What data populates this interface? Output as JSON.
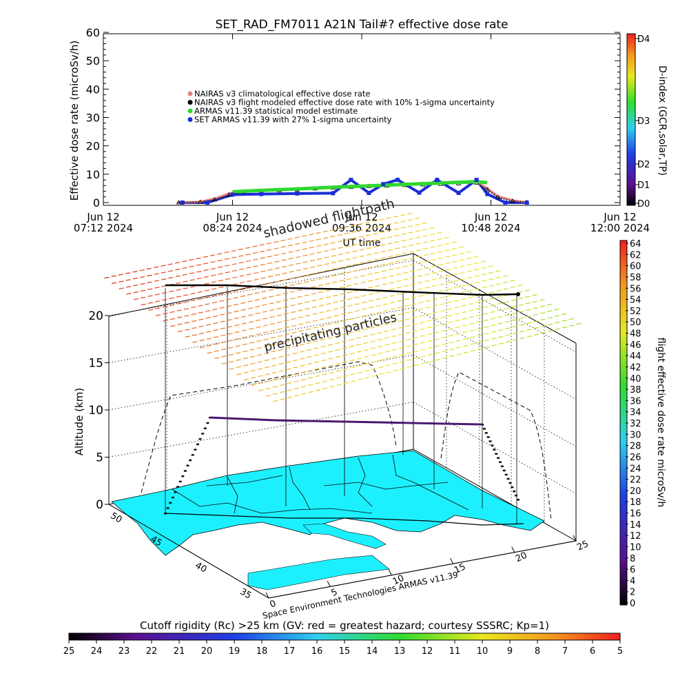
{
  "chart_data": [
    {
      "type": "line",
      "title": "SET_RAD_FM7011  A21N Tail#? effective dose rate",
      "ylabel": "Effective dose rate (microSv/h)",
      "xlabel": "UT time",
      "ylim": [
        0,
        60
      ],
      "yticks": [
        0,
        10,
        20,
        30,
        40,
        50,
        60
      ],
      "xlim": [
        "2024-06-12 07:12",
        "2024-06-12 12:00"
      ],
      "xticks": [
        {
          "t": "07:12",
          "date": "Jun 12",
          "label": "07:12 2024"
        },
        {
          "t": "08:24",
          "date": "Jun 12",
          "label": "08:24 2024"
        },
        {
          "t": "09:36",
          "date": "Jun 12",
          "label": "09:36 2024"
        },
        {
          "t": "10:48",
          "date": "Jun 12",
          "label": "10:48 2024"
        },
        {
          "t": "12:00",
          "date": "Jun 12",
          "label": "12:00 2024"
        }
      ],
      "legend": {
        "placement": "upper-left",
        "entries": [
          {
            "label": "NAIRAS v3 climatological effective dose rate",
            "color": "#e88080"
          },
          {
            "label": "NAIRAS v3 flight modeled effective dose rate with 10% 1-sigma uncertainty",
            "color": "#000000"
          },
          {
            "label": "ARMAS v11.39 statistical model estimate",
            "color": "#2fd82f"
          },
          {
            "label": "SET ARMAS v11.39 with 27% 1-sigma uncertainty",
            "color": "#1a2fd6"
          }
        ]
      },
      "series": [
        {
          "x": [
            "07:54",
            "08:06",
            "08:14",
            "08:22",
            "08:30",
            "08:40",
            "08:50",
            "09:00",
            "09:10",
            "09:20",
            "09:30",
            "09:40",
            "09:50",
            "10:00",
            "10:10",
            "10:20",
            "10:30",
            "10:40",
            "10:46",
            "10:52",
            "11:00",
            "11:08"
          ],
          "y": [
            0,
            0.3,
            1.4,
            3.2,
            4.1,
            4.4,
            4.6,
            4.9,
            5.2,
            5.5,
            5.8,
            6.1,
            6.3,
            6.6,
            6.8,
            7.0,
            7.2,
            7.4,
            5.0,
            2.2,
            0.8,
            0.1
          ]
        },
        {
          "x": [
            "07:54",
            "08:06",
            "08:14",
            "08:22",
            "08:30",
            "08:40",
            "08:50",
            "09:00",
            "09:10",
            "09:20",
            "09:30",
            "09:40",
            "09:50",
            "10:00",
            "10:10",
            "10:20",
            "10:30",
            "10:40",
            "10:46",
            "10:52",
            "11:00",
            "11:08"
          ],
          "y": [
            0,
            0.2,
            1.0,
            2.6,
            3.7,
            4.0,
            4.3,
            4.6,
            4.9,
            5.2,
            5.4,
            5.7,
            5.9,
            6.1,
            6.3,
            6.5,
            6.7,
            6.9,
            4.5,
            1.8,
            0.5,
            0.1
          ]
        },
        {
          "x": [
            "08:24",
            "08:40",
            "09:00",
            "09:20",
            "09:40",
            "10:00",
            "10:20",
            "10:40",
            "10:46"
          ],
          "y": [
            3.8,
            4.3,
            4.8,
            5.4,
            5.9,
            6.4,
            6.9,
            7.4,
            7.0
          ]
        },
        {
          "x": [
            "07:56",
            "08:10",
            "08:24",
            "08:40",
            "09:00",
            "09:20",
            "09:30",
            "09:40",
            "09:48",
            "09:56",
            "10:08",
            "10:18",
            "10:30",
            "10:40",
            "10:46",
            "10:56",
            "11:08"
          ],
          "y": [
            0,
            0,
            2.8,
            3.0,
            3.2,
            3.3,
            8.0,
            3.4,
            6.5,
            8.0,
            3.5,
            8.0,
            3.4,
            8.0,
            3.0,
            0,
            0
          ]
        }
      ]
    },
    {
      "type": "scatter",
      "ylabel": "Altitude (km)",
      "zticks": [
        0,
        5,
        10,
        15,
        20
      ],
      "lat_ticks": [
        "50",
        "45",
        "40",
        "35"
      ],
      "lon_ticks": [
        "0",
        "5",
        "10",
        "15",
        "20",
        "25"
      ],
      "annotations": [
        "shadowed flightpath",
        "precipitating particles"
      ],
      "credit": "Space Environment Technologies ARMAS v11.39",
      "flight": {
        "altitude_km": 9,
        "dose_rate_microSv_h": 4
      }
    }
  ],
  "colorbars": {
    "dindex": {
      "label": "D-index (GCR,solar,TP)",
      "ticks": [
        "D0",
        "D1",
        "D2",
        "D3",
        "D4"
      ]
    },
    "dose": {
      "label": "flight effective dose rate microSv/h",
      "ticks": [
        "0",
        "2",
        "4",
        "6",
        "8",
        "10",
        "12",
        "14",
        "16",
        "18",
        "20",
        "22",
        "24",
        "26",
        "28",
        "30",
        "32",
        "34",
        "36",
        "38",
        "40",
        "42",
        "44",
        "46",
        "48",
        "50",
        "52",
        "54",
        "56",
        "58",
        "60",
        "62",
        "64"
      ]
    },
    "cutoff": {
      "label": "Cutoff rigidity (Rc) >25 km (GV: red = greatest hazard; courtesy SSSRC; Kp=1)",
      "ticks": [
        "25",
        "24",
        "23",
        "22",
        "21",
        "20",
        "19",
        "18",
        "17",
        "16",
        "15",
        "14",
        "13",
        "12",
        "11",
        "10",
        "9",
        "8",
        "7",
        "6",
        "5"
      ]
    }
  }
}
